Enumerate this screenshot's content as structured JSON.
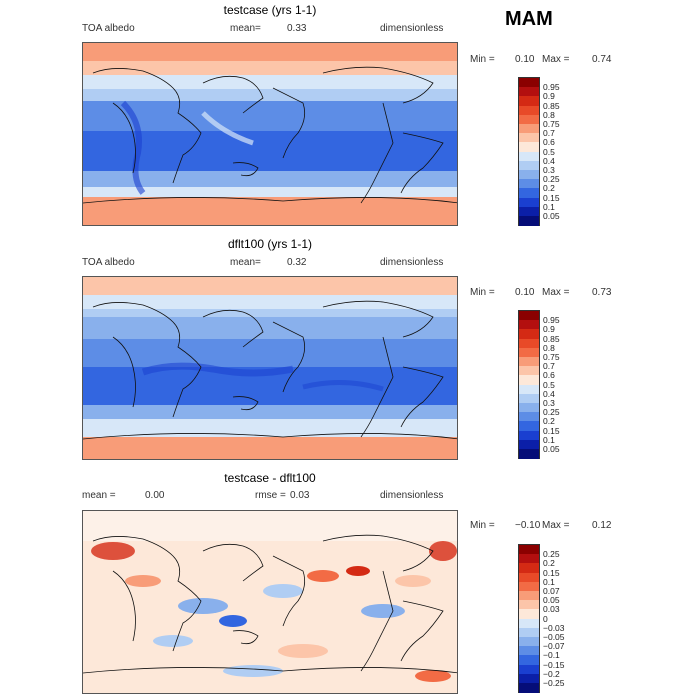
{
  "season_label": "MAM",
  "panels": [
    {
      "title": "testcase (yrs 1-1)",
      "left_label": "TOA albedo",
      "mean_label": "mean=",
      "mean_value": "0.33",
      "unit_label": "dimensionless",
      "min_label": "Min =",
      "min_value": "0.10",
      "max_label": "Max =",
      "max_value": "0.74",
      "colorbar": {
        "labels": [
          "0.95",
          "0.9",
          "0.85",
          "0.8",
          "0.75",
          "0.7",
          "0.6",
          "0.5",
          "0.4",
          "0.3",
          "0.25",
          "0.2",
          "0.15",
          "0.1",
          "0.05"
        ],
        "colors": [
          "#8b0000",
          "#b30f0f",
          "#d42a14",
          "#e84a28",
          "#f26b45",
          "#f89c78",
          "#fcc5a9",
          "#fde8d9",
          "#d7e7f8",
          "#b0cdf3",
          "#89b0ec",
          "#5d8de6",
          "#3366e0",
          "#1a3fd0",
          "#0b1fa8",
          "#050d78"
        ]
      }
    },
    {
      "title": "dflt100 (yrs 1-1)",
      "left_label": "TOA albedo",
      "mean_label": "mean=",
      "mean_value": "0.32",
      "unit_label": "dimensionless",
      "min_label": "Min =",
      "min_value": "0.10",
      "max_label": "Max =",
      "max_value": "0.73",
      "colorbar": {
        "labels": [
          "0.95",
          "0.9",
          "0.85",
          "0.8",
          "0.75",
          "0.7",
          "0.6",
          "0.5",
          "0.4",
          "0.3",
          "0.25",
          "0.2",
          "0.15",
          "0.1",
          "0.05"
        ],
        "colors": [
          "#8b0000",
          "#b30f0f",
          "#d42a14",
          "#e84a28",
          "#f26b45",
          "#f89c78",
          "#fcc5a9",
          "#fde8d9",
          "#d7e7f8",
          "#b0cdf3",
          "#89b0ec",
          "#5d8de6",
          "#3366e0",
          "#1a3fd0",
          "#0b1fa8",
          "#050d78"
        ]
      }
    },
    {
      "title": "testcase - dflt100",
      "left_label": "mean =",
      "left_value": "0.00",
      "rmse_label": "rmse =",
      "rmse_value": "0.03",
      "unit_label": "dimensionless",
      "min_label": "Min =",
      "min_value": "−0.10",
      "max_label": "Max =",
      "max_value": "0.12",
      "colorbar": {
        "labels": [
          "0.25",
          "0.2",
          "0.15",
          "0.1",
          "0.07",
          "0.05",
          "0.03",
          "0",
          "−0.03",
          "−0.05",
          "−0.07",
          "−0.1",
          "−0.15",
          "−0.2",
          "−0.25"
        ],
        "colors": [
          "#8b0000",
          "#b30f0f",
          "#d42a14",
          "#e84a28",
          "#f26b45",
          "#f89c78",
          "#fcc5a9",
          "#fde8d9",
          "#d7e7f8",
          "#b0cdf3",
          "#89b0ec",
          "#5d8de6",
          "#3366e0",
          "#1a3fd0",
          "#0b1fa8",
          "#050d78"
        ]
      }
    }
  ]
}
